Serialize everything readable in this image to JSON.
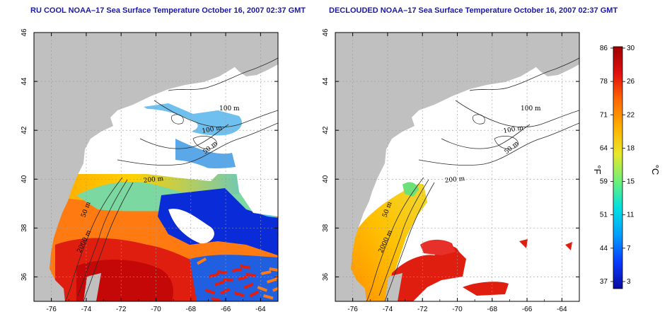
{
  "panels": [
    {
      "title": "RU COOL NOAA–17 Sea Surface Temperature October 16, 2007 02:37 GMT",
      "variant": "cool",
      "x_ticks": [
        "-76",
        "-74",
        "-72",
        "-70",
        "-68",
        "-66",
        "-64"
      ],
      "y_ticks": [
        "36",
        "38",
        "40",
        "42",
        "44",
        "46"
      ],
      "isobaths": [
        "100 m",
        "100 m",
        "50 m",
        "200 m",
        "50 m",
        "2000 m"
      ]
    },
    {
      "title": "DECLOUDED NOAA–17 Sea Surface Temperature October 16, 2007 02:37 GMT",
      "variant": "declouded",
      "x_ticks": [
        "-76",
        "-74",
        "-72",
        "-70",
        "-68",
        "-66",
        "-64"
      ],
      "y_ticks": [
        "36",
        "38",
        "40",
        "42",
        "44",
        "46"
      ],
      "isobaths": [
        "100 m",
        "100 m",
        "50 m",
        "200 m",
        "50 m",
        "2000 m"
      ]
    }
  ],
  "colorbar": {
    "f_label": "°F",
    "c_label": "°C",
    "f_ticks": [
      "86",
      "78",
      "71",
      "64",
      "59",
      "51",
      "44",
      "37"
    ],
    "c_ticks": [
      "30",
      "26",
      "22",
      "18",
      "15",
      "11",
      "7",
      "3"
    ],
    "colors": [
      "#0a0a9e",
      "#0a3cff",
      "#00a0ff",
      "#00e0e0",
      "#6ef07a",
      "#e8e82a",
      "#ffb000",
      "#ff6a00",
      "#e01010",
      "#a00000"
    ]
  },
  "colors": {
    "land": "#c0c0c0",
    "title": "#1a1aa6",
    "warm": "#e01e10",
    "cold": "#0a2cd8"
  }
}
